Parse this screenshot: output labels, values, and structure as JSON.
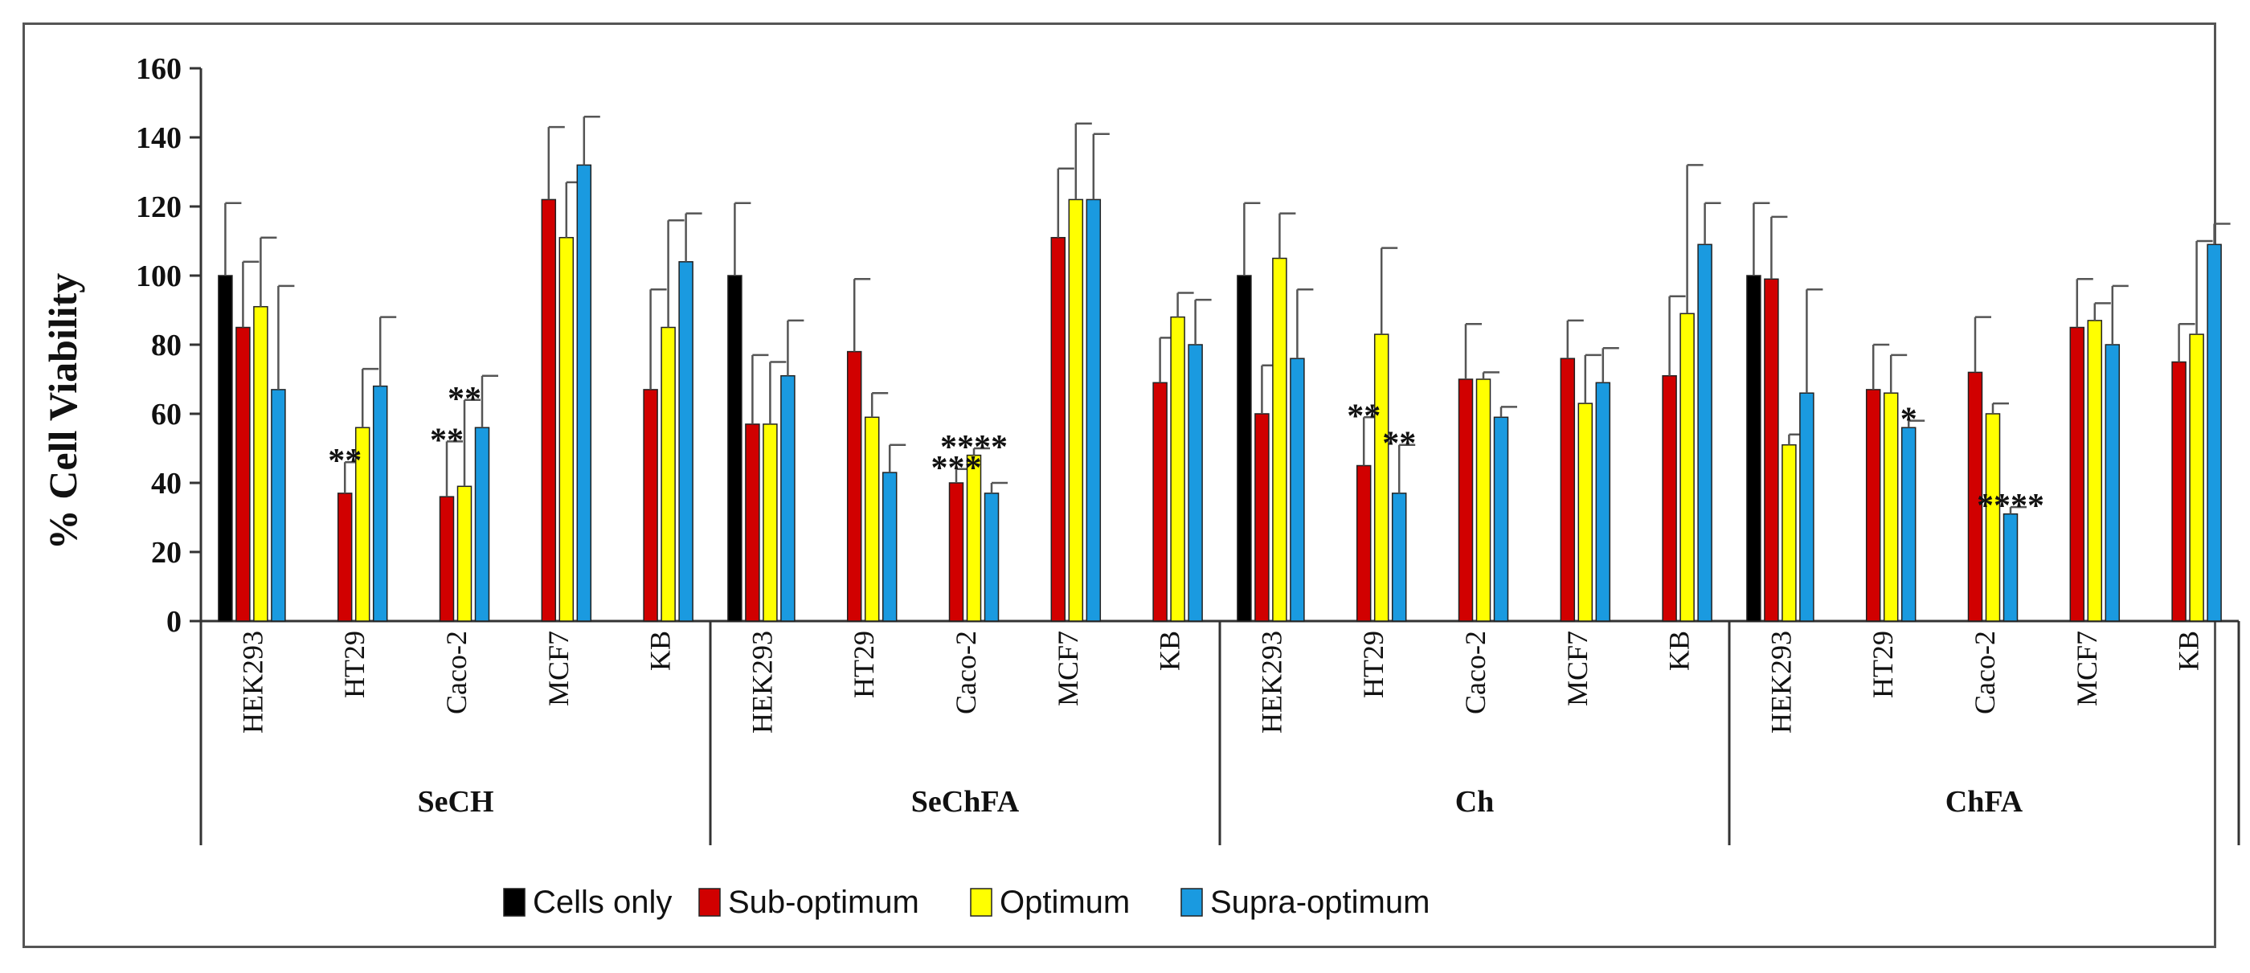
{
  "chart_data": {
    "type": "bar",
    "title": "",
    "ylabel": "% Cell Viability",
    "xlabel": "",
    "ylim": [
      0,
      160
    ],
    "yticks": [
      0,
      20,
      40,
      60,
      80,
      100,
      120,
      140,
      160
    ],
    "grid": false,
    "legend_position": "bottom",
    "colors": {
      "Cells only": "#000000",
      "Sub-optimum": "#d10000",
      "Optimum": "#ffff00",
      "Supra-optimum": "#1a9ae0"
    },
    "series_names": [
      "Cells only",
      "Sub-optimum",
      "Optimum",
      "Supra-optimum"
    ],
    "groups": [
      {
        "name": "SeCH",
        "categories": [
          {
            "name": "HEK293",
            "values": [
              100,
              85,
              91,
              67
            ],
            "errors": [
              21,
              19,
              20,
              30
            ]
          },
          {
            "name": "HT29",
            "values": [
              null,
              37,
              56,
              68
            ],
            "errors": [
              null,
              9,
              17,
              20
            ]
          },
          {
            "name": "Caco-2",
            "values": [
              null,
              36,
              39,
              56
            ],
            "errors": [
              null,
              16,
              25,
              15
            ]
          },
          {
            "name": "MCF7",
            "values": [
              null,
              122,
              111,
              132
            ],
            "errors": [
              null,
              21,
              16,
              14
            ]
          },
          {
            "name": "KB",
            "values": [
              null,
              67,
              85,
              104
            ],
            "errors": [
              null,
              29,
              31,
              14
            ]
          }
        ],
        "annotations": [
          {
            "category": "HT29",
            "series": "Sub-optimum",
            "text": "**"
          },
          {
            "category": "Caco-2",
            "series": "Sub-optimum",
            "text": "**"
          },
          {
            "category": "Caco-2",
            "series": "Optimum",
            "text": "**"
          }
        ]
      },
      {
        "name": "SeChFA",
        "categories": [
          {
            "name": "HEK293",
            "values": [
              100,
              57,
              57,
              71
            ],
            "errors": [
              21,
              20,
              18,
              16
            ]
          },
          {
            "name": "HT29",
            "values": [
              null,
              78,
              59,
              43
            ],
            "errors": [
              null,
              21,
              7,
              8
            ]
          },
          {
            "name": "Caco-2",
            "values": [
              null,
              40,
              48,
              37
            ],
            "errors": [
              null,
              4,
              2,
              3
            ]
          },
          {
            "name": "MCF7",
            "values": [
              null,
              111,
              122,
              122
            ],
            "errors": [
              null,
              20,
              22,
              19
            ]
          },
          {
            "name": "KB",
            "values": [
              null,
              69,
              88,
              80
            ],
            "errors": [
              null,
              13,
              7,
              13
            ]
          }
        ],
        "annotations": [
          {
            "category": "Caco-2",
            "series": "Sub-optimum",
            "text": "***"
          },
          {
            "category": "Caco-2",
            "series": "Optimum",
            "text": "****"
          }
        ]
      },
      {
        "name": "Ch",
        "categories": [
          {
            "name": "HEK293",
            "values": [
              100,
              60,
              105,
              76
            ],
            "errors": [
              21,
              14,
              13,
              20
            ]
          },
          {
            "name": "HT29",
            "values": [
              null,
              45,
              83,
              37
            ],
            "errors": [
              null,
              14,
              25,
              14
            ]
          },
          {
            "name": "Caco-2",
            "values": [
              null,
              70,
              70,
              59
            ],
            "errors": [
              null,
              16,
              2,
              3
            ]
          },
          {
            "name": "MCF7",
            "values": [
              null,
              76,
              63,
              69
            ],
            "errors": [
              null,
              11,
              14,
              10
            ]
          },
          {
            "name": "KB",
            "values": [
              null,
              71,
              89,
              109
            ],
            "errors": [
              null,
              23,
              43,
              12
            ]
          }
        ],
        "annotations": [
          {
            "category": "HT29",
            "series": "Sub-optimum",
            "text": "**"
          },
          {
            "category": "HT29",
            "series": "Supra-optimum",
            "text": "**"
          }
        ]
      },
      {
        "name": "ChFA",
        "categories": [
          {
            "name": "HEK293",
            "values": [
              100,
              99,
              51,
              66
            ],
            "errors": [
              21,
              18,
              3,
              30
            ]
          },
          {
            "name": "HT29",
            "values": [
              null,
              67,
              66,
              56
            ],
            "errors": [
              null,
              13,
              11,
              2
            ]
          },
          {
            "name": "Caco-2",
            "values": [
              null,
              72,
              60,
              31
            ],
            "errors": [
              null,
              16,
              3,
              2
            ]
          },
          {
            "name": "MCF7",
            "values": [
              null,
              85,
              87,
              80
            ],
            "errors": [
              null,
              14,
              5,
              17
            ]
          },
          {
            "name": "KB",
            "values": [
              null,
              75,
              83,
              109
            ],
            "errors": [
              null,
              11,
              27,
              6
            ]
          }
        ],
        "annotations": [
          {
            "category": "HT29",
            "series": "Supra-optimum",
            "text": "*"
          },
          {
            "category": "Caco-2",
            "series": "Supra-optimum",
            "text": "****"
          }
        ]
      }
    ]
  }
}
